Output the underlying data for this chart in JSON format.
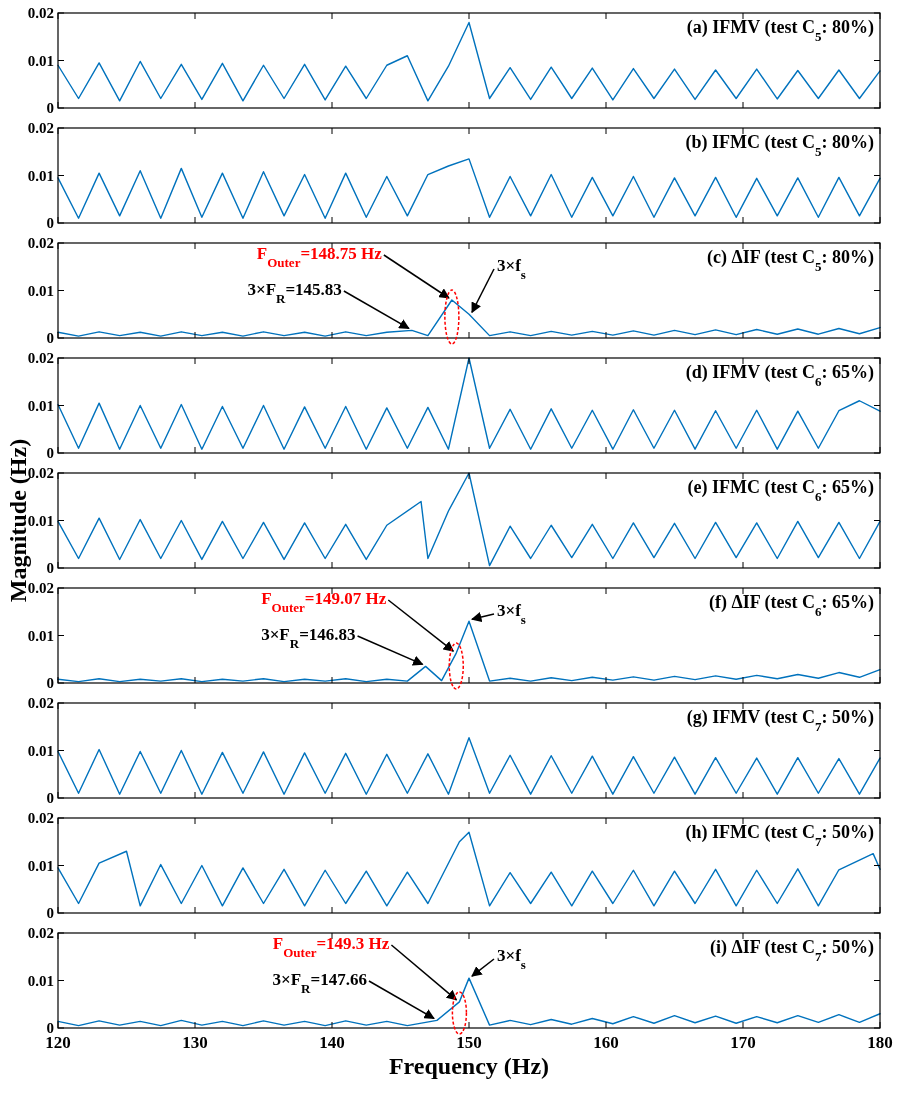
{
  "chart_data": [
    {
      "type": "line",
      "title": "(a) IFMV (test C$_{5}$: 80%)",
      "color": "#0072bd",
      "xlim": [
        120,
        180
      ],
      "xticks": [
        120,
        130,
        140,
        150,
        160,
        170,
        180
      ],
      "ylim": [
        0,
        0.02
      ],
      "yticks": [
        0,
        0.01,
        0.02
      ],
      "tick_labels": "y",
      "x": [
        120,
        121.5,
        123,
        124.5,
        126,
        127.5,
        129,
        130.5,
        132,
        133.5,
        135,
        136.5,
        138,
        139.5,
        141,
        142.5,
        144,
        145.5,
        147,
        148.5,
        150,
        151.5,
        153,
        154.5,
        156,
        157.5,
        159,
        160.5,
        162,
        163.5,
        165,
        166.5,
        168,
        169.5,
        171,
        172.5,
        174,
        175.5,
        177,
        178.5,
        180
      ],
      "values": [
        0.009,
        0.002,
        0.0095,
        0.0015,
        0.0098,
        0.002,
        0.0092,
        0.0018,
        0.0094,
        0.0015,
        0.009,
        0.002,
        0.0092,
        0.0017,
        0.0088,
        0.002,
        0.009,
        0.011,
        0.0015,
        0.0088,
        0.018,
        0.002,
        0.0085,
        0.0018,
        0.0086,
        0.002,
        0.0084,
        0.0017,
        0.0083,
        0.002,
        0.0082,
        0.0018,
        0.008,
        0.002,
        0.0082,
        0.0019,
        0.0079,
        0.002,
        0.008,
        0.002,
        0.0078
      ]
    },
    {
      "type": "line",
      "title": "(b) IFMC (test C$_{5}$: 80%)",
      "color": "#0072bd",
      "xlim": [
        120,
        180
      ],
      "xticks": [
        120,
        130,
        140,
        150,
        160,
        170,
        180
      ],
      "ylim": [
        0,
        0.02
      ],
      "yticks": [
        0,
        0.01,
        0.02
      ],
      "tick_labels": "y",
      "x": [
        120,
        121.5,
        123,
        124.5,
        126,
        127.5,
        129,
        130.5,
        132,
        133.5,
        135,
        136.5,
        138,
        139.5,
        141,
        142.5,
        144,
        145.5,
        147,
        148.5,
        150,
        151.5,
        153,
        154.5,
        156,
        157.5,
        159,
        160.5,
        162,
        163.5,
        165,
        166.5,
        168,
        169.5,
        171,
        172.5,
        174,
        175.5,
        177,
        178.5,
        180
      ],
      "values": [
        0.0095,
        0.001,
        0.0105,
        0.0015,
        0.011,
        0.001,
        0.0115,
        0.0012,
        0.0105,
        0.001,
        0.0108,
        0.0015,
        0.0102,
        0.001,
        0.0105,
        0.0012,
        0.0098,
        0.0015,
        0.0102,
        0.012,
        0.0135,
        0.0012,
        0.0098,
        0.0015,
        0.0102,
        0.0012,
        0.0096,
        0.0015,
        0.0098,
        0.0012,
        0.0095,
        0.0015,
        0.0096,
        0.0012,
        0.0094,
        0.0015,
        0.0095,
        0.0012,
        0.0096,
        0.0015,
        0.0094
      ]
    },
    {
      "type": "line",
      "title": "(c) ΔIF (test C$_{5}$: 80%)",
      "color": "#0072bd",
      "xlim": [
        120,
        180
      ],
      "xticks": [
        120,
        130,
        140,
        150,
        160,
        170,
        180
      ],
      "ylim": [
        0,
        0.02
      ],
      "yticks": [
        0,
        0.01,
        0.02
      ],
      "tick_labels": "y",
      "x": [
        120,
        121.5,
        123,
        124.5,
        126,
        127.5,
        129,
        130.5,
        132,
        133.5,
        135,
        136.5,
        138,
        139.5,
        141,
        142.5,
        144,
        145.83,
        147,
        148.75,
        150,
        151.5,
        153,
        154.5,
        156,
        157.5,
        159,
        160.5,
        162,
        163.5,
        165,
        166.5,
        168,
        169.5,
        171,
        172.5,
        174,
        175.5,
        177,
        178.5,
        180
      ],
      "values": [
        0.0012,
        0.0004,
        0.0013,
        0.0005,
        0.0012,
        0.0004,
        0.0013,
        0.0005,
        0.0012,
        0.0004,
        0.0013,
        0.0005,
        0.0012,
        0.0004,
        0.0013,
        0.0005,
        0.0012,
        0.0016,
        0.0005,
        0.008,
        0.005,
        0.0005,
        0.0013,
        0.0005,
        0.0014,
        0.0006,
        0.0014,
        0.0006,
        0.0015,
        0.0006,
        0.0016,
        0.0007,
        0.0017,
        0.0007,
        0.0018,
        0.0008,
        0.0019,
        0.0008,
        0.002,
        0.0009,
        0.0022
      ],
      "annotations": [
        {
          "text": "F$_{Outer}$=148.75 Hz",
          "x": 148.75,
          "y": 0.008
        },
        {
          "text": "3×F$_{R}$=145.83",
          "x": 145.83,
          "y": 0.0016
        },
        {
          "text": "3×f$_{s}$",
          "x": 150,
          "y": 0.005
        }
      ]
    },
    {
      "type": "line",
      "title": "(d) IFMV (test C$_{6}$: 65%)",
      "color": "#0072bd",
      "xlim": [
        120,
        180
      ],
      "xticks": [
        120,
        130,
        140,
        150,
        160,
        170,
        180
      ],
      "ylim": [
        0,
        0.02
      ],
      "yticks": [
        0,
        0.01,
        0.02
      ],
      "tick_labels": "y",
      "x": [
        120,
        121.5,
        123,
        124.5,
        126,
        127.5,
        129,
        130.5,
        132,
        133.5,
        135,
        136.5,
        138,
        139.5,
        141,
        142.5,
        144,
        145.5,
        147,
        148.5,
        150,
        151.5,
        153,
        154.5,
        156,
        157.5,
        159,
        160.5,
        162,
        163.5,
        165,
        166.5,
        168,
        169.5,
        171,
        172.5,
        174,
        175.5,
        177,
        178.5,
        180
      ],
      "values": [
        0.0102,
        0.001,
        0.0105,
        0.0008,
        0.01,
        0.001,
        0.0102,
        0.0008,
        0.0098,
        0.001,
        0.01,
        0.0008,
        0.0097,
        0.001,
        0.0098,
        0.0008,
        0.0095,
        0.001,
        0.0096,
        0.0008,
        0.02,
        0.001,
        0.0092,
        0.0008,
        0.0093,
        0.001,
        0.009,
        0.0008,
        0.0091,
        0.001,
        0.009,
        0.0008,
        0.0089,
        0.001,
        0.009,
        0.0008,
        0.0088,
        0.001,
        0.0089,
        0.011,
        0.0088
      ]
    },
    {
      "type": "line",
      "title": "(e) IFMC (test C$_{6}$: 65%)",
      "ylabel": "Magnitude (Hz)",
      "color": "#0072bd",
      "xlim": [
        120,
        180
      ],
      "xticks": [
        120,
        130,
        140,
        150,
        160,
        170,
        180
      ],
      "ylim": [
        0,
        0.02
      ],
      "yticks": [
        0,
        0.01,
        0.02
      ],
      "tick_labels": "y",
      "x": [
        120,
        121.5,
        123,
        124.5,
        126,
        127.5,
        129,
        130.5,
        132,
        133.5,
        135,
        136.5,
        138,
        139.5,
        141,
        142.5,
        144,
        146.5,
        147,
        148.5,
        150,
        151.5,
        153,
        154.5,
        156,
        157.5,
        159,
        160.5,
        162,
        163.5,
        165,
        166.5,
        168,
        169.5,
        171,
        172.5,
        174,
        175.5,
        177,
        178.5,
        180
      ],
      "values": [
        0.0098,
        0.002,
        0.0105,
        0.0018,
        0.0102,
        0.002,
        0.01,
        0.0018,
        0.0098,
        0.002,
        0.0096,
        0.0018,
        0.0095,
        0.002,
        0.0092,
        0.0018,
        0.009,
        0.014,
        0.002,
        0.012,
        0.02,
        0.0005,
        0.0088,
        0.002,
        0.009,
        0.0022,
        0.0092,
        0.002,
        0.0095,
        0.0022,
        0.0094,
        0.002,
        0.0096,
        0.0022,
        0.0095,
        0.002,
        0.0098,
        0.0022,
        0.0096,
        0.002,
        0.0098
      ]
    },
    {
      "type": "line",
      "title": "(f) ΔIF (test C$_{6}$: 65%)",
      "color": "#0072bd",
      "xlim": [
        120,
        180
      ],
      "xticks": [
        120,
        130,
        140,
        150,
        160,
        170,
        180
      ],
      "ylim": [
        0,
        0.02
      ],
      "yticks": [
        0,
        0.01,
        0.02
      ],
      "tick_labels": "y",
      "x": [
        120,
        121.5,
        123,
        124.5,
        126,
        127.5,
        129,
        130.5,
        132,
        133.5,
        135,
        136.5,
        138,
        139.5,
        141,
        142.5,
        144,
        145.5,
        146.83,
        148,
        149.07,
        150,
        151.5,
        153,
        154.5,
        156,
        157.5,
        159,
        160.5,
        162,
        163.5,
        165,
        166.5,
        168,
        169.5,
        171,
        172.5,
        174,
        175.5,
        177,
        178.5,
        180
      ],
      "values": [
        0.0008,
        0.0003,
        0.0009,
        0.0003,
        0.0008,
        0.0004,
        0.0009,
        0.0003,
        0.0008,
        0.0004,
        0.0009,
        0.0003,
        0.0008,
        0.0004,
        0.0009,
        0.0003,
        0.0008,
        0.0004,
        0.0035,
        0.0005,
        0.0063,
        0.013,
        0.0004,
        0.001,
        0.0004,
        0.0011,
        0.0005,
        0.0012,
        0.0006,
        0.0013,
        0.0006,
        0.0014,
        0.0007,
        0.0015,
        0.0008,
        0.0016,
        0.0009,
        0.0018,
        0.001,
        0.0022,
        0.0012,
        0.0028
      ],
      "annotations": [
        {
          "text": "F$_{Outer}$=149.07 Hz",
          "x": 149.07,
          "y": 0.0063
        },
        {
          "text": "3×F$_{R}$=146.83",
          "x": 146.83,
          "y": 0.0035
        },
        {
          "text": "3×f$_{s}$",
          "x": 150,
          "y": 0.013
        }
      ]
    },
    {
      "type": "line",
      "title": "(g) IFMV (test C$_{7}$: 50%)",
      "color": "#0072bd",
      "xlim": [
        120,
        180
      ],
      "xticks": [
        120,
        130,
        140,
        150,
        160,
        170,
        180
      ],
      "ylim": [
        0,
        0.02
      ],
      "yticks": [
        0,
        0.01,
        0.02
      ],
      "tick_labels": "y",
      "x": [
        120,
        121.5,
        123,
        124.5,
        126,
        127.5,
        129,
        130.5,
        132,
        133.5,
        135,
        136.5,
        138,
        139.5,
        141,
        142.5,
        144,
        145.5,
        147,
        148.5,
        150,
        151.5,
        153,
        154.5,
        156,
        157.5,
        159,
        160.5,
        162,
        163.5,
        165,
        166.5,
        168,
        169.5,
        171,
        172.5,
        174,
        175.5,
        177,
        178.5,
        180
      ],
      "values": [
        0.0098,
        0.001,
        0.0102,
        0.0008,
        0.0098,
        0.001,
        0.01,
        0.0008,
        0.0096,
        0.001,
        0.0097,
        0.0008,
        0.0095,
        0.001,
        0.0094,
        0.0008,
        0.0092,
        0.001,
        0.0093,
        0.0008,
        0.0127,
        0.001,
        0.009,
        0.0008,
        0.0089,
        0.001,
        0.0088,
        0.0008,
        0.0087,
        0.001,
        0.0086,
        0.0008,
        0.0085,
        0.001,
        0.0084,
        0.0008,
        0.0085,
        0.001,
        0.0083,
        0.0008,
        0.0084
      ]
    },
    {
      "type": "line",
      "title": "(h) IFMC (test C$_{7}$: 50%)",
      "color": "#0072bd",
      "xlim": [
        120,
        180
      ],
      "xticks": [
        120,
        130,
        140,
        150,
        160,
        170,
        180
      ],
      "ylim": [
        0,
        0.02
      ],
      "yticks": [
        0,
        0.01,
        0.02
      ],
      "tick_labels": "y",
      "x": [
        120,
        121.5,
        123,
        125,
        126,
        127.5,
        129,
        130.5,
        132,
        133.5,
        135,
        136.5,
        138,
        139.5,
        141,
        142.5,
        144,
        145.5,
        147,
        149.3,
        150,
        151.5,
        153,
        154.5,
        156,
        157.5,
        159,
        160.5,
        162,
        163.5,
        165,
        166.5,
        168,
        169.5,
        171,
        172.5,
        174,
        175.5,
        177,
        179.5,
        180
      ],
      "values": [
        0.0095,
        0.002,
        0.0105,
        0.013,
        0.0015,
        0.0102,
        0.002,
        0.01,
        0.0015,
        0.0095,
        0.002,
        0.0092,
        0.0015,
        0.009,
        0.002,
        0.0088,
        0.0015,
        0.0086,
        0.002,
        0.015,
        0.017,
        0.0015,
        0.0085,
        0.002,
        0.0086,
        0.0015,
        0.0088,
        0.002,
        0.009,
        0.0015,
        0.0088,
        0.002,
        0.0092,
        0.0015,
        0.009,
        0.002,
        0.0093,
        0.0015,
        0.0091,
        0.0125,
        0.0092
      ]
    },
    {
      "type": "line",
      "title": "(i) ΔIF (test C$_{7}$: 50%)",
      "xlabel": "Frequency (Hz)",
      "color": "#0072bd",
      "xlim": [
        120,
        180
      ],
      "xticks": [
        120,
        130,
        140,
        150,
        160,
        170,
        180
      ],
      "ylim": [
        0,
        0.02
      ],
      "yticks": [
        0,
        0.01,
        0.02
      ],
      "x": [
        120,
        121.5,
        123,
        124.5,
        126,
        127.5,
        129,
        130.5,
        132,
        133.5,
        135,
        136.5,
        138,
        139.5,
        141,
        142.5,
        144,
        145.5,
        147.66,
        149.3,
        150,
        151.5,
        153,
        154.5,
        156,
        157.5,
        159,
        160.5,
        162,
        163.5,
        165,
        166.5,
        168,
        169.5,
        171,
        172.5,
        174,
        175.5,
        177,
        178.5,
        180
      ],
      "values": [
        0.0014,
        0.0005,
        0.0015,
        0.0006,
        0.0014,
        0.0005,
        0.0016,
        0.0006,
        0.0014,
        0.0005,
        0.0015,
        0.0006,
        0.0014,
        0.0005,
        0.0015,
        0.0006,
        0.0014,
        0.0005,
        0.0016,
        0.0055,
        0.0105,
        0.0006,
        0.0016,
        0.0007,
        0.0018,
        0.0008,
        0.002,
        0.0009,
        0.0024,
        0.001,
        0.0026,
        0.0011,
        0.0025,
        0.001,
        0.0024,
        0.0011,
        0.0026,
        0.0012,
        0.0028,
        0.0012,
        0.003
      ],
      "annotations": [
        {
          "text": "F$_{Outer}$=149.3 Hz",
          "x": 149.3,
          "y": 0.0055
        },
        {
          "text": "3×F$_{R}$=147.66",
          "x": 147.66,
          "y": 0.0016
        },
        {
          "text": "3×f$_{s}$",
          "x": 150,
          "y": 0.0105
        }
      ]
    }
  ]
}
